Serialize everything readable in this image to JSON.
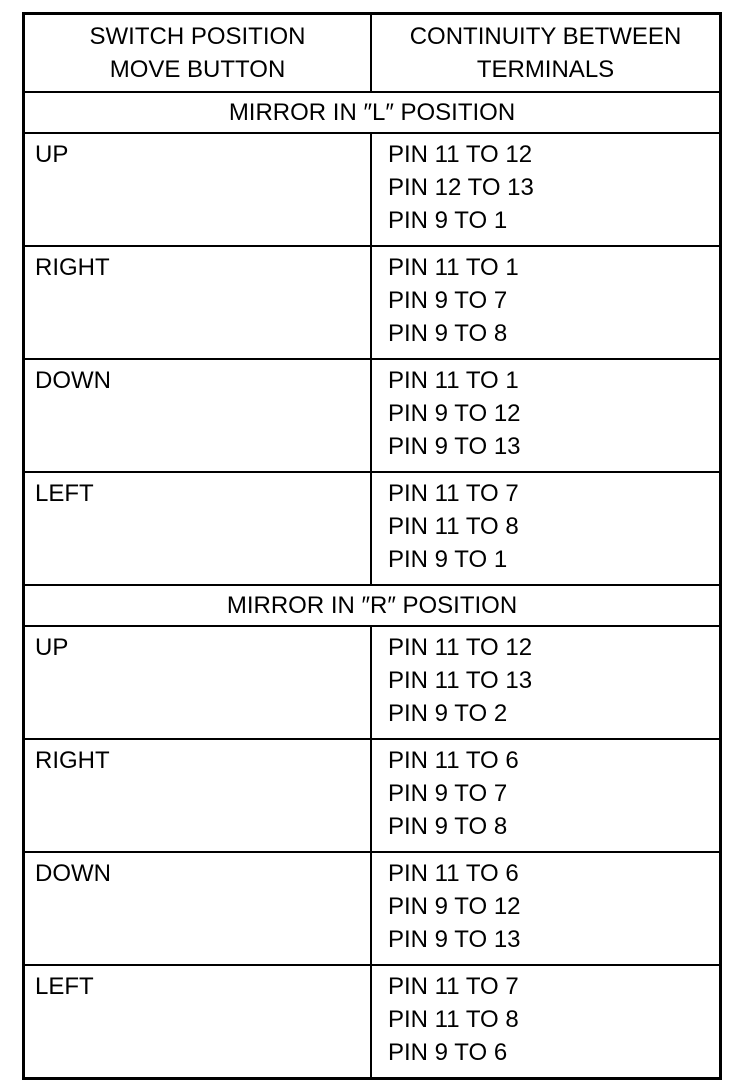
{
  "headers": {
    "col1": [
      "SWITCH POSITION",
      "MOVE BUTTON"
    ],
    "col2": [
      "CONTINUITY BETWEEN",
      "TERMINALS"
    ]
  },
  "sections": [
    {
      "title": "MIRROR IN ″L″ POSITION",
      "rows": [
        {
          "position": "UP",
          "continuity": [
            "PIN 11 TO 12",
            "PIN 12 TO 13",
            "PIN 9 TO 1"
          ]
        },
        {
          "position": "RIGHT",
          "continuity": [
            "PIN 11 TO 1",
            "PIN 9 TO 7",
            "PIN 9 TO 8"
          ]
        },
        {
          "position": "DOWN",
          "continuity": [
            "PIN 11 TO 1",
            "PIN 9 TO 12",
            "PIN 9 TO 13"
          ]
        },
        {
          "position": "LEFT",
          "continuity": [
            "PIN 11 TO 7",
            "PIN 11 TO 8",
            "PIN 9 TO 1"
          ]
        }
      ]
    },
    {
      "title": "MIRROR IN ″R″ POSITION",
      "rows": [
        {
          "position": "UP",
          "continuity": [
            "PIN 11 TO 12",
            "PIN 11 TO 13",
            "PIN 9 TO 2"
          ]
        },
        {
          "position": "RIGHT",
          "continuity": [
            "PIN 11 TO 6",
            "PIN 9 TO 7",
            "PIN 9 TO 8"
          ]
        },
        {
          "position": "DOWN",
          "continuity": [
            "PIN 11 TO 6",
            "PIN 9 TO 12",
            "PIN 9 TO 13"
          ]
        },
        {
          "position": "LEFT",
          "continuity": [
            "PIN 11 TO 7",
            "PIN 11 TO 8",
            "PIN 9 TO 6"
          ]
        }
      ]
    }
  ]
}
